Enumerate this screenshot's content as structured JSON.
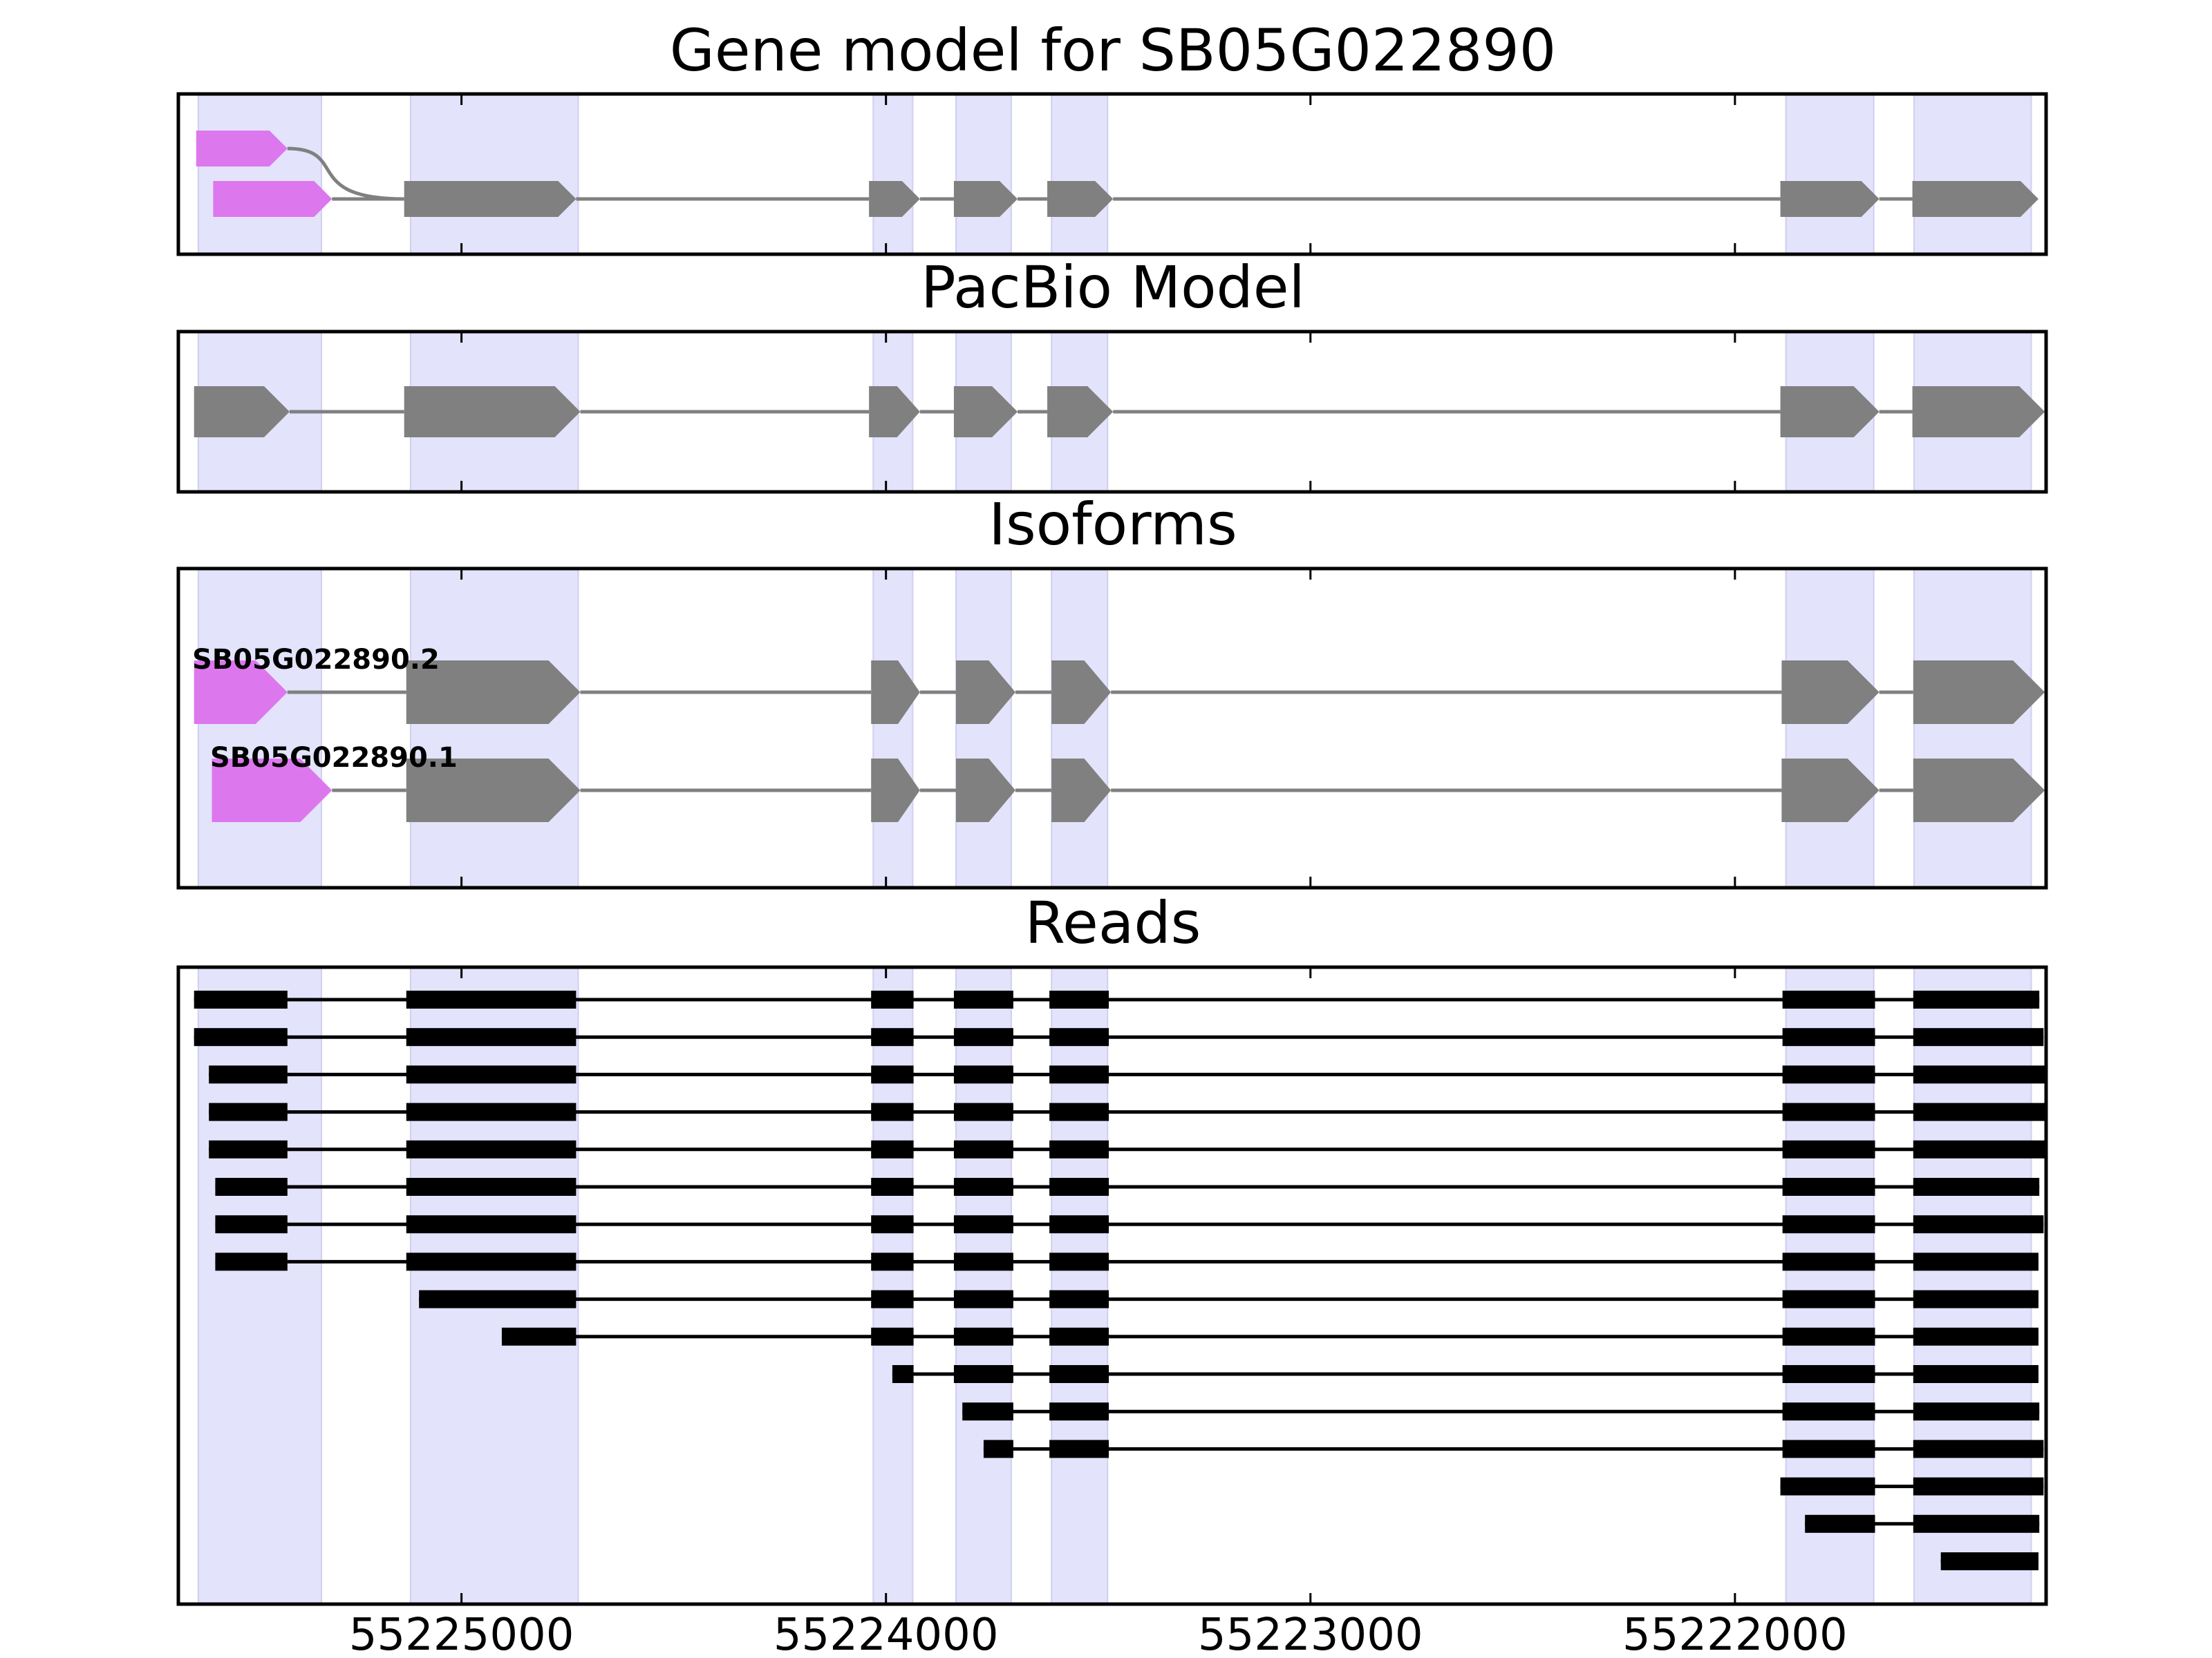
{
  "colors": {
    "highlight": "#e3e3fb",
    "highlight_edge": "#cfcff0",
    "exon": "#808080",
    "utr": "#dd77ee",
    "read": "#000000",
    "frame": "#000000"
  },
  "chart_data": {
    "type": "gene_structure",
    "x_axis": {
      "reversed": true,
      "xlim": [
        55225667,
        55221267
      ],
      "ticks": [
        55225000,
        55224000,
        55223000,
        55222000
      ],
      "tick_labels": [
        "55225000",
        "55224000",
        "55223000",
        "55222000"
      ]
    },
    "highlight_regions": [
      [
        55225620,
        55225330
      ],
      [
        55225120,
        55224725
      ],
      [
        55224030,
        55223937
      ],
      [
        55223835,
        55223705
      ],
      [
        55223610,
        55223478
      ],
      [
        55221880,
        55221673
      ],
      [
        55221578,
        55221302
      ]
    ],
    "panels": [
      {
        "title": "Gene model for SB05G022890",
        "strand": "-",
        "transcripts": [
          {
            "utr": [
              [
                55225625,
                55225410
              ]
            ],
            "exons": [
              [
                55225135,
                55224730
              ],
              [
                55224040,
                55223920
              ],
              [
                55223840,
                55223690
              ],
              [
                55223620,
                55223465
              ],
              [
                55221893,
                55221660
              ],
              [
                55221582,
                55221285
              ]
            ]
          },
          {
            "utr": [
              [
                55225585,
                55225305
              ]
            ],
            "exons": [
              [
                55225135,
                55224730
              ],
              [
                55224040,
                55223920
              ],
              [
                55223840,
                55223690
              ],
              [
                55223620,
                55223465
              ],
              [
                55221893,
                55221660
              ],
              [
                55221582,
                55221285
              ]
            ]
          }
        ]
      },
      {
        "title": "PacBio Model",
        "strand": "-",
        "transcripts": [
          {
            "utr": [],
            "exons": [
              [
                55225630,
                55225405
              ],
              [
                55225135,
                55224720
              ],
              [
                55224040,
                55223920
              ],
              [
                55223840,
                55223690
              ],
              [
                55223620,
                55223465
              ],
              [
                55221893,
                55221660
              ],
              [
                55221582,
                55221270
              ]
            ]
          }
        ]
      },
      {
        "title": "Isoforms",
        "strand": "-",
        "transcripts": [
          {
            "name": "SB05G022890.2",
            "utr": [
              [
                55225630,
                55225410
              ]
            ],
            "exons": [
              [
                55225130,
                55224720
              ],
              [
                55224035,
                55223920
              ],
              [
                55223835,
                55223695
              ],
              [
                55223610,
                55223470
              ],
              [
                55221890,
                55221660
              ],
              [
                55221580,
                55221270
              ]
            ]
          },
          {
            "name": "SB05G022890.1",
            "utr": [
              [
                55225588,
                55225305
              ]
            ],
            "exons": [
              [
                55225130,
                55224720
              ],
              [
                55224035,
                55223920
              ],
              [
                55223835,
                55223695
              ],
              [
                55223610,
                55223470
              ],
              [
                55221890,
                55221660
              ],
              [
                55221580,
                55221270
              ]
            ]
          }
        ]
      },
      {
        "title": "Reads",
        "reads": [
          [
            [
              55225630,
              55225410
            ],
            [
              55225130,
              55224730
            ],
            [
              55224035,
              55223935
            ],
            [
              55223840,
              55223700
            ],
            [
              55223615,
              55223475
            ],
            [
              55221888,
              55221670
            ],
            [
              55221580,
              55221283
            ]
          ],
          [
            [
              55225630,
              55225410
            ],
            [
              55225130,
              55224730
            ],
            [
              55224035,
              55223935
            ],
            [
              55223840,
              55223700
            ],
            [
              55223615,
              55223475
            ],
            [
              55221888,
              55221670
            ],
            [
              55221580,
              55221273
            ]
          ],
          [
            [
              55225595,
              55225410
            ],
            [
              55225130,
              55224730
            ],
            [
              55224035,
              55223935
            ],
            [
              55223840,
              55223700
            ],
            [
              55223615,
              55223475
            ],
            [
              55221888,
              55221670
            ],
            [
              55221580,
              55221270
            ]
          ],
          [
            [
              55225595,
              55225410
            ],
            [
              55225130,
              55224730
            ],
            [
              55224035,
              55223935
            ],
            [
              55223840,
              55223700
            ],
            [
              55223615,
              55223475
            ],
            [
              55221888,
              55221670
            ],
            [
              55221580,
              55221270
            ]
          ],
          [
            [
              55225595,
              55225410
            ],
            [
              55225130,
              55224730
            ],
            [
              55224035,
              55223935
            ],
            [
              55223840,
              55223700
            ],
            [
              55223615,
              55223475
            ],
            [
              55221888,
              55221670
            ],
            [
              55221580,
              55221270
            ]
          ],
          [
            [
              55225580,
              55225410
            ],
            [
              55225130,
              55224730
            ],
            [
              55224035,
              55223935
            ],
            [
              55223840,
              55223700
            ],
            [
              55223615,
              55223475
            ],
            [
              55221888,
              55221670
            ],
            [
              55221580,
              55221283
            ]
          ],
          [
            [
              55225580,
              55225410
            ],
            [
              55225130,
              55224730
            ],
            [
              55224035,
              55223935
            ],
            [
              55223840,
              55223700
            ],
            [
              55223615,
              55223475
            ],
            [
              55221888,
              55221670
            ],
            [
              55221580,
              55221273
            ]
          ],
          [
            [
              55225580,
              55225410
            ],
            [
              55225130,
              55224730
            ],
            [
              55224035,
              55223935
            ],
            [
              55223840,
              55223700
            ],
            [
              55223615,
              55223475
            ],
            [
              55221888,
              55221670
            ],
            [
              55221580,
              55221285
            ]
          ],
          [
            [
              55225100,
              55224730
            ],
            [
              55224035,
              55223935
            ],
            [
              55223840,
              55223700
            ],
            [
              55223615,
              55223475
            ],
            [
              55221888,
              55221670
            ],
            [
              55221580,
              55221285
            ]
          ],
          [
            [
              55224905,
              55224730
            ],
            [
              55224035,
              55223935
            ],
            [
              55223840,
              55223700
            ],
            [
              55223615,
              55223475
            ],
            [
              55221888,
              55221670
            ],
            [
              55221580,
              55221285
            ]
          ],
          [
            [
              55223985,
              55223935
            ],
            [
              55223840,
              55223700
            ],
            [
              55223615,
              55223475
            ],
            [
              55221888,
              55221670
            ],
            [
              55221580,
              55221285
            ]
          ],
          [
            [
              55223820,
              55223700
            ],
            [
              55223615,
              55223475
            ],
            [
              55221888,
              55221670
            ],
            [
              55221580,
              55221283
            ]
          ],
          [
            [
              55223770,
              55223700
            ],
            [
              55223615,
              55223475
            ],
            [
              55221888,
              55221670
            ],
            [
              55221580,
              55221273
            ]
          ],
          [
            [
              55221893,
              55221670
            ],
            [
              55221580,
              55221273
            ]
          ],
          [
            [
              55221835,
              55221670
            ],
            [
              55221580,
              55221283
            ]
          ],
          [
            [
              55221515,
              55221285
            ]
          ]
        ]
      }
    ]
  }
}
